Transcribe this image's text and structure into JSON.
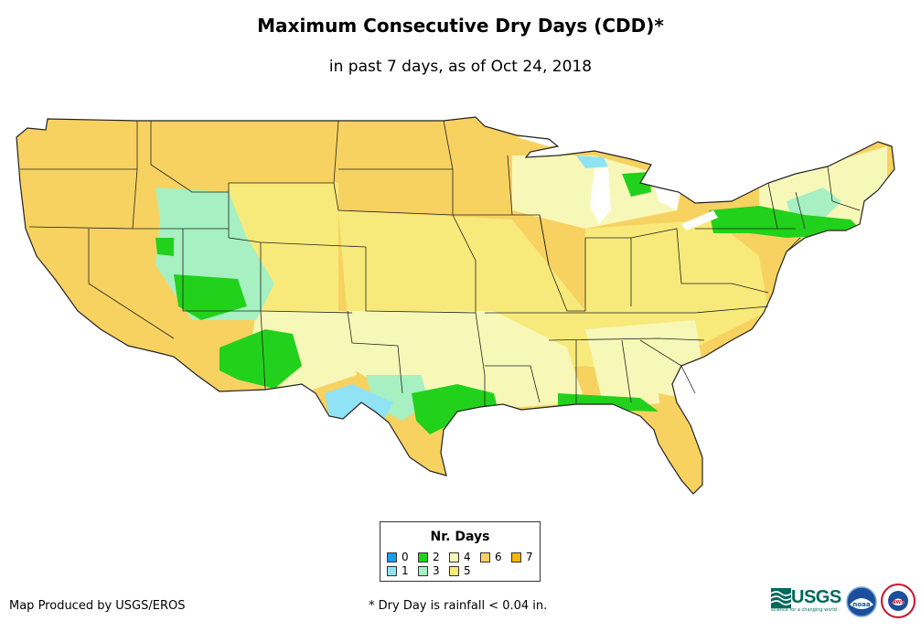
{
  "header": {
    "title": "Maximum Consecutive Dry Days (CDD)*",
    "subtitle": "in past 7 days, as of Oct 24, 2018"
  },
  "legend": {
    "title": "Nr. Days",
    "items": [
      {
        "label": "0",
        "color": "#1c9ee6"
      },
      {
        "label": "1",
        "color": "#8fe3f5"
      },
      {
        "label": "2",
        "color": "#22d11b"
      },
      {
        "label": "3",
        "color": "#a6f0c2"
      },
      {
        "label": "4",
        "color": "#f7f7b8"
      },
      {
        "label": "5",
        "color": "#f7ea7a"
      },
      {
        "label": "6",
        "color": "#f7d261"
      },
      {
        "label": "7",
        "color": "#f5b800"
      }
    ]
  },
  "footer": {
    "credit": "Map Produced by USGS/EROS",
    "note": "* Dry Day is rainfall < 0.04 in."
  },
  "logos": {
    "usgs_text": "USGS",
    "usgs_tagline": "science for a changing world",
    "noaa_text": "noaa",
    "nws_text": "NWS"
  }
}
